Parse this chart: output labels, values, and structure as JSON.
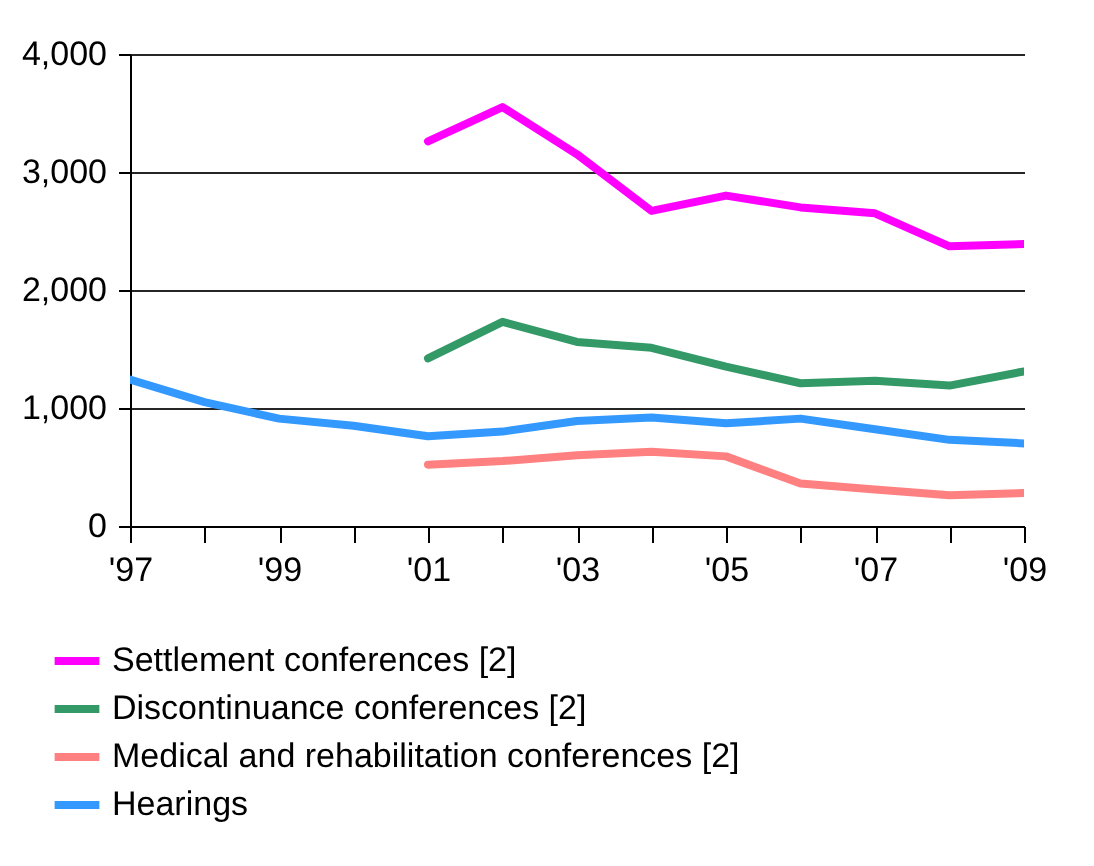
{
  "chart_data": {
    "type": "line",
    "x": [
      1997,
      1998,
      1999,
      2000,
      2001,
      2002,
      2003,
      2004,
      2005,
      2006,
      2007,
      2008,
      2009
    ],
    "series": [
      {
        "name": "Settlement conferences [2]",
        "color": "#ff00ff",
        "values": [
          null,
          null,
          null,
          null,
          3260,
          3550,
          3150,
          2670,
          2800,
          2700,
          2650,
          2370,
          2390
        ]
      },
      {
        "name": "Discontinuance conferences [2]",
        "color": "#339966",
        "values": [
          null,
          null,
          null,
          null,
          1420,
          1730,
          1560,
          1510,
          1350,
          1210,
          1230,
          1190,
          1310
        ]
      },
      {
        "name": "Medical and rehabilitation conferences [2]",
        "color": "#ff8080",
        "values": [
          null,
          null,
          null,
          null,
          520,
          550,
          600,
          630,
          590,
          360,
          310,
          260,
          280
        ]
      },
      {
        "name": "Hearings",
        "color": "#3399ff",
        "values": [
          1240,
          1050,
          910,
          850,
          760,
          800,
          890,
          920,
          870,
          910,
          820,
          730,
          700
        ]
      }
    ],
    "xlim": [
      1997,
      2009
    ],
    "xticks": [
      {
        "value": 1997,
        "label": "'97"
      },
      {
        "value": 1998,
        "label": null
      },
      {
        "value": 1999,
        "label": "'99"
      },
      {
        "value": 2000,
        "label": null
      },
      {
        "value": 2001,
        "label": "'01"
      },
      {
        "value": 2002,
        "label": null
      },
      {
        "value": 2003,
        "label": "'03"
      },
      {
        "value": 2004,
        "label": null
      },
      {
        "value": 2005,
        "label": "'05"
      },
      {
        "value": 2006,
        "label": null
      },
      {
        "value": 2007,
        "label": "'07"
      },
      {
        "value": 2008,
        "label": null
      },
      {
        "value": 2009,
        "label": "'09"
      }
    ],
    "ylim": [
      0,
      4000
    ],
    "yticks": [
      0,
      {
        "value": 1000,
        "label": "1,000"
      },
      {
        "value": 2000,
        "label": "2,000"
      },
      {
        "value": 3000,
        "label": "3,000"
      },
      {
        "value": 4000,
        "label": "4,000"
      }
    ],
    "grid": "y",
    "legend": "bottom",
    "marker": "none",
    "line_style": "solid"
  }
}
